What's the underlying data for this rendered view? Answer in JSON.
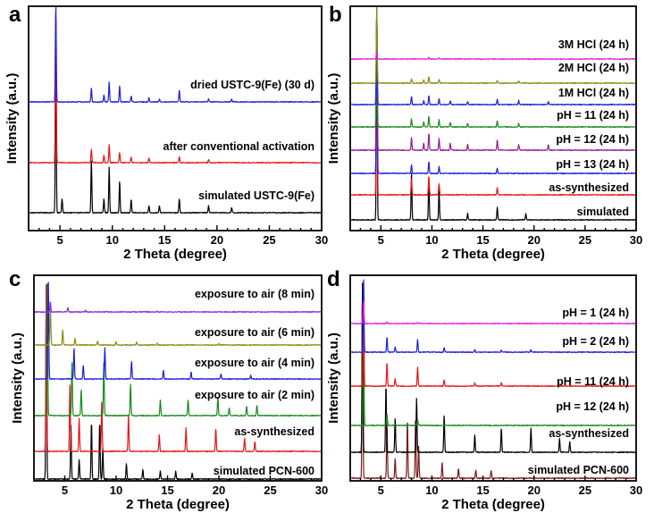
{
  "chart_data": [
    {
      "panel": "a",
      "type": "line",
      "xlabel": "2 Theta (degree)",
      "ylabel": "Intensity (a.u.)",
      "xlim": [
        2,
        30
      ],
      "xticks": [
        5,
        10,
        15,
        20,
        25,
        30
      ],
      "series": [
        {
          "name": "simulated USTC-9(Fe)",
          "color": "#000000",
          "peaks": [
            [
              4.6,
              100
            ],
            [
              5.2,
              8
            ],
            [
              8.0,
              30
            ],
            [
              9.2,
              8
            ],
            [
              9.7,
              26
            ],
            [
              10.7,
              18
            ],
            [
              11.8,
              8
            ],
            [
              13.5,
              4
            ],
            [
              14.5,
              4
            ],
            [
              16.4,
              8
            ],
            [
              19.2,
              4
            ],
            [
              21.4,
              3
            ]
          ]
        },
        {
          "name": "after conventional activation",
          "color": "#e8141b",
          "peaks": [
            [
              4.6,
              100
            ],
            [
              8.0,
              9
            ],
            [
              9.2,
              5
            ],
            [
              9.7,
              12
            ],
            [
              10.7,
              7
            ],
            [
              11.8,
              4
            ],
            [
              13.5,
              3
            ],
            [
              16.4,
              4
            ],
            [
              19.2,
              2
            ]
          ]
        },
        {
          "name": "dried USTC-9(Fe) (30 d)",
          "color": "#1e1ee0",
          "peaks": [
            [
              4.6,
              100
            ],
            [
              8.0,
              14
            ],
            [
              9.2,
              7
            ],
            [
              9.7,
              20
            ],
            [
              10.7,
              16
            ],
            [
              11.8,
              6
            ],
            [
              13.5,
              4
            ],
            [
              14.5,
              3
            ],
            [
              16.4,
              12
            ],
            [
              19.2,
              3
            ],
            [
              21.4,
              3
            ]
          ]
        }
      ]
    },
    {
      "panel": "b",
      "type": "line",
      "xlabel": "2 Theta (degree)",
      "ylabel": "Intensity (a.u.)",
      "xlim": [
        2,
        30
      ],
      "xticks": [
        5,
        10,
        15,
        20,
        25,
        30
      ],
      "series": [
        {
          "name": "simulated",
          "color": "#000000",
          "peaks": [
            [
              4.6,
              100
            ],
            [
              8.0,
              22
            ],
            [
              9.7,
              20
            ],
            [
              10.7,
              14
            ],
            [
              13.5,
              3
            ],
            [
              16.4,
              6
            ],
            [
              19.2,
              3
            ]
          ]
        },
        {
          "name": "as-synthesized",
          "color": "#e8141b",
          "peaks": [
            [
              4.6,
              100
            ],
            [
              8.0,
              8
            ],
            [
              9.7,
              10
            ],
            [
              10.7,
              6
            ],
            [
              16.4,
              4
            ]
          ]
        },
        {
          "name": "pH = 13 (24 h)",
          "color": "#1e1ee0",
          "peaks": [
            [
              4.6,
              100
            ],
            [
              8.0,
              5
            ],
            [
              9.7,
              7
            ],
            [
              10.7,
              4
            ],
            [
              16.4,
              3
            ]
          ]
        },
        {
          "name": "pH = 12 (24 h)",
          "color": "#8e1e8e",
          "peaks": [
            [
              4.6,
              100
            ],
            [
              8.0,
              9
            ],
            [
              9.2,
              5
            ],
            [
              9.7,
              12
            ],
            [
              10.7,
              8
            ],
            [
              11.8,
              5
            ],
            [
              13.5,
              4
            ],
            [
              16.4,
              7
            ],
            [
              18.5,
              4
            ],
            [
              21.4,
              4
            ]
          ]
        },
        {
          "name": "pH = 11 (24 h)",
          "color": "#1a8a1a",
          "peaks": [
            [
              4.6,
              100
            ],
            [
              8.0,
              7
            ],
            [
              9.2,
              4
            ],
            [
              9.7,
              9
            ],
            [
              10.7,
              6
            ],
            [
              11.8,
              4
            ],
            [
              13.5,
              3
            ],
            [
              16.4,
              5
            ],
            [
              18.5,
              3
            ]
          ]
        },
        {
          "name": "1M HCl (24 h)",
          "color": "#1e1ee0",
          "peaks": [
            [
              4.6,
              100
            ],
            [
              8.0,
              8
            ],
            [
              9.2,
              4
            ],
            [
              9.7,
              9
            ],
            [
              10.7,
              6
            ],
            [
              11.8,
              4
            ],
            [
              13.5,
              3
            ],
            [
              16.4,
              5
            ],
            [
              18.5,
              4
            ],
            [
              21.4,
              3
            ]
          ]
        },
        {
          "name": "2M HCl (24 h)",
          "color": "#8c8c14",
          "peaks": [
            [
              4.6,
              100
            ],
            [
              8.0,
              6
            ],
            [
              9.2,
              4
            ],
            [
              9.7,
              8
            ],
            [
              10.7,
              5
            ],
            [
              16.4,
              4
            ],
            [
              18.5,
              3
            ]
          ]
        },
        {
          "name": "3M HCl (24 h)",
          "color": "#e020e0",
          "peaks": [
            [
              4.6,
              14
            ],
            [
              9.7,
              3
            ],
            [
              10.7,
              2
            ]
          ]
        }
      ]
    },
    {
      "panel": "c",
      "type": "line",
      "xlabel": "2 Theta (degree)",
      "ylabel": "Intensity (a.u.)",
      "xlim": [
        2,
        30
      ],
      "xticks": [
        5,
        10,
        15,
        20,
        25,
        30
      ],
      "series": [
        {
          "name": "simulated PCN-600",
          "color": "#000000",
          "peaks": [
            [
              3.2,
              100
            ],
            [
              5.6,
              28
            ],
            [
              6.4,
              10
            ],
            [
              7.6,
              30
            ],
            [
              8.4,
              30
            ],
            [
              8.7,
              16
            ],
            [
              11.0,
              8
            ],
            [
              12.6,
              5
            ],
            [
              14.3,
              4
            ],
            [
              15.8,
              4
            ],
            [
              17.4,
              3
            ]
          ]
        },
        {
          "name": "as-synthesized",
          "color": "#e8141b",
          "peaks": [
            [
              3.2,
              100
            ],
            [
              5.5,
              40
            ],
            [
              6.4,
              20
            ],
            [
              8.6,
              30
            ],
            [
              11.2,
              22
            ],
            [
              14.2,
              10
            ],
            [
              16.8,
              14
            ],
            [
              19.7,
              14
            ],
            [
              22.5,
              8
            ],
            [
              23.5,
              6
            ]
          ]
        },
        {
          "name": "exposure to air (2 min)",
          "color": "#1a8a1a",
          "peaks": [
            [
              3.3,
              100
            ],
            [
              5.7,
              40
            ],
            [
              6.6,
              20
            ],
            [
              8.8,
              40
            ],
            [
              11.4,
              24
            ],
            [
              14.3,
              12
            ],
            [
              17.0,
              12
            ],
            [
              19.9,
              14
            ],
            [
              21.0,
              6
            ],
            [
              22.7,
              7
            ],
            [
              23.7,
              8
            ]
          ]
        },
        {
          "name": "exposure to air (4 min)",
          "color": "#1e1ee0",
          "peaks": [
            [
              3.4,
              100
            ],
            [
              5.9,
              32
            ],
            [
              6.8,
              14
            ],
            [
              8.9,
              32
            ],
            [
              11.5,
              18
            ],
            [
              14.6,
              9
            ],
            [
              17.3,
              7
            ],
            [
              20.2,
              5
            ],
            [
              23.1,
              4
            ]
          ]
        },
        {
          "name": "exposure to air (6 min)",
          "color": "#8c8c14",
          "peaks": [
            [
              3.6,
              60
            ],
            [
              4.8,
              22
            ],
            [
              6.0,
              10
            ],
            [
              8.2,
              6
            ],
            [
              10.0,
              5
            ],
            [
              12.0,
              4
            ],
            [
              14.0,
              3
            ],
            [
              20.0,
              2
            ]
          ]
        },
        {
          "name": "exposure to air (8 min)",
          "color": "#8a2be2",
          "peaks": [
            [
              3.6,
              30
            ],
            [
              5.3,
              14
            ],
            [
              7.0,
              4
            ],
            [
              9.0,
              3
            ],
            [
              14.0,
              2
            ]
          ]
        }
      ]
    },
    {
      "panel": "d",
      "type": "line",
      "xlabel": "2 Theta (degree)",
      "ylabel": "Intensity (a.u.)",
      "xlim": [
        2,
        30
      ],
      "xticks": [
        5,
        10,
        15,
        20,
        25,
        30
      ],
      "series": [
        {
          "name": "simulated PCN-600",
          "color": "#7a1a1a",
          "peaks": [
            [
              3.2,
              100
            ],
            [
              5.6,
              28
            ],
            [
              6.4,
              10
            ],
            [
              7.6,
              30
            ],
            [
              8.4,
              30
            ],
            [
              8.7,
              16
            ],
            [
              11.0,
              8
            ],
            [
              12.6,
              5
            ],
            [
              14.3,
              4
            ],
            [
              15.8,
              4
            ]
          ]
        },
        {
          "name": "as-synthesized",
          "color": "#000000",
          "peaks": [
            [
              3.2,
              100
            ],
            [
              5.5,
              40
            ],
            [
              6.4,
              20
            ],
            [
              8.5,
              32
            ],
            [
              11.2,
              22
            ],
            [
              14.2,
              10
            ],
            [
              16.8,
              14
            ],
            [
              19.7,
              14
            ],
            [
              22.5,
              8
            ],
            [
              23.5,
              6
            ]
          ]
        },
        {
          "name": "pH = 12 (24 h)",
          "color": "#1a8a1a",
          "peaks": [
            [
              3.3,
              100
            ],
            [
              5.6,
              8
            ],
            [
              8.6,
              4
            ]
          ]
        },
        {
          "name": "pH = 11 (24 h)",
          "color": "#e8141b",
          "peaks": [
            [
              3.3,
              100
            ],
            [
              5.6,
              22
            ],
            [
              6.4,
              7
            ],
            [
              8.6,
              18
            ],
            [
              11.2,
              6
            ],
            [
              14.2,
              3
            ],
            [
              16.8,
              3
            ]
          ]
        },
        {
          "name": "pH = 2 (24 h)",
          "color": "#1e1ee0",
          "peaks": [
            [
              3.3,
              100
            ],
            [
              5.6,
              20
            ],
            [
              6.4,
              7
            ],
            [
              8.6,
              17
            ],
            [
              11.2,
              6
            ],
            [
              14.2,
              3
            ],
            [
              16.8,
              3
            ],
            [
              19.7,
              3
            ]
          ]
        },
        {
          "name": "pH = 1 (24 h)",
          "color": "#e020e0",
          "peaks": [
            [
              3.3,
              50
            ],
            [
              5.6,
              4
            ],
            [
              8.6,
              3
            ]
          ]
        }
      ]
    }
  ]
}
